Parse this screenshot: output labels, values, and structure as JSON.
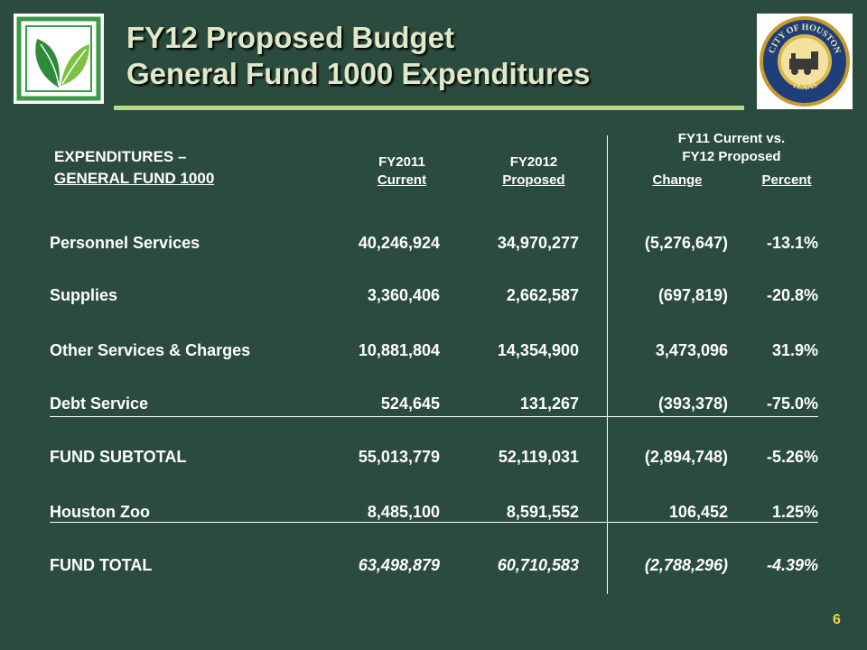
{
  "title": {
    "line1": "FY12 Proposed Budget",
    "line2": "General Fund 1000 Expenditures"
  },
  "logos": {
    "left": {
      "icon": "leaf-logo-icon",
      "colors": [
        "#2e8b3a",
        "#7cc242"
      ]
    },
    "right": {
      "icon": "city-of-houston-seal-icon",
      "text_top": "CITY OF HOUSTON",
      "text_bottom": "TEXAS"
    }
  },
  "table": {
    "section_label_line1": "EXPENDITURES –",
    "section_label_line2": "GENERAL FUND 1000",
    "col_fy11_line1": "FY2011",
    "col_fy11_line2": "Current",
    "col_fy12_line1": "FY2012",
    "col_fy12_line2": "Proposed",
    "group_header_line1": "FY11 Current vs.",
    "group_header_line2": "FY12 Proposed",
    "col_change": "Change",
    "col_percent": "Percent",
    "rows": [
      {
        "label": "Personnel Services",
        "fy11": "40,246,924",
        "fy12": "34,970,277",
        "change": "(5,276,647)",
        "percent": "-13.1%"
      },
      {
        "label": "Supplies",
        "fy11": "3,360,406",
        "fy12": "2,662,587",
        "change": "(697,819)",
        "percent": "-20.8%"
      },
      {
        "label": "Other Services & Charges",
        "fy11": "10,881,804",
        "fy12": "14,354,900",
        "change": "3,473,096",
        "percent": "31.9%"
      },
      {
        "label": "Debt Service",
        "fy11": "524,645",
        "fy12": "131,267",
        "change": "(393,378)",
        "percent": "-75.0%"
      },
      {
        "label": "FUND SUBTOTAL",
        "fy11": "55,013,779",
        "fy12": "52,119,031",
        "change": "(2,894,748)",
        "percent": "-5.26%"
      },
      {
        "label": "Houston Zoo",
        "fy11": "8,485,100",
        "fy12": "8,591,552",
        "change": "106,452",
        "percent": "1.25%"
      },
      {
        "label": "FUND TOTAL",
        "fy11": "63,498,879",
        "fy12": "60,710,583",
        "change": "(2,788,296)",
        "percent": "-4.39%"
      }
    ]
  },
  "page_number": "6",
  "colors": {
    "background": "#2b4b3e",
    "title": "#dfe8c8",
    "title_rule": "#b8d98a",
    "page_number": "#e8d83a"
  }
}
